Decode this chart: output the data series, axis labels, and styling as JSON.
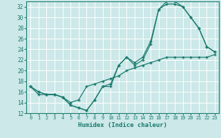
{
  "xlabel": "Humidex (Indice chaleur)",
  "xlim": [
    -0.5,
    23.5
  ],
  "ylim": [
    12,
    33
  ],
  "xticks": [
    0,
    1,
    2,
    3,
    4,
    5,
    6,
    7,
    8,
    9,
    10,
    11,
    12,
    13,
    14,
    15,
    16,
    17,
    18,
    19,
    20,
    21,
    22,
    23
  ],
  "yticks": [
    12,
    14,
    16,
    18,
    20,
    22,
    24,
    26,
    28,
    30,
    32
  ],
  "bg_color": "#cce8e8",
  "line_color": "#1a7a6e",
  "grid_color": "#ffffff",
  "line1_x": [
    0,
    1,
    2,
    3,
    4,
    5,
    6,
    7,
    8,
    9,
    10,
    11,
    12,
    13,
    14,
    15,
    16,
    17,
    18,
    19,
    20,
    21,
    22,
    23
  ],
  "line1_y": [
    17,
    16,
    15.5,
    15.5,
    15,
    13.5,
    13,
    12.5,
    14.5,
    17,
    17.5,
    21,
    22.5,
    21.5,
    22.5,
    25.5,
    31.5,
    33,
    33,
    32,
    30,
    28,
    24.5,
    23.5
  ],
  "line2_x": [
    0,
    1,
    2,
    3,
    4,
    5,
    6,
    7,
    8,
    9,
    10,
    11,
    12,
    13,
    14,
    15,
    16,
    17,
    18,
    19,
    20,
    21,
    22,
    23
  ],
  "line2_y": [
    17,
    16,
    15.5,
    15.5,
    15,
    13.5,
    13,
    12.5,
    14.5,
    17,
    17,
    21,
    22.5,
    21,
    22,
    25,
    31.5,
    32.5,
    32.5,
    32,
    30,
    28,
    24.5,
    23.5
  ],
  "line3_x": [
    0,
    1,
    2,
    3,
    4,
    5,
    6,
    7,
    8,
    9,
    10,
    11,
    12,
    13,
    14,
    15,
    16,
    17,
    18,
    19,
    20,
    21,
    22,
    23
  ],
  "line3_y": [
    17,
    15.5,
    15.5,
    15.5,
    15,
    14,
    14.5,
    17,
    17.5,
    18,
    18.5,
    19,
    20,
    20.5,
    21,
    21.5,
    22,
    22.5,
    22.5,
    22.5,
    22.5,
    22.5,
    22.5,
    23
  ]
}
